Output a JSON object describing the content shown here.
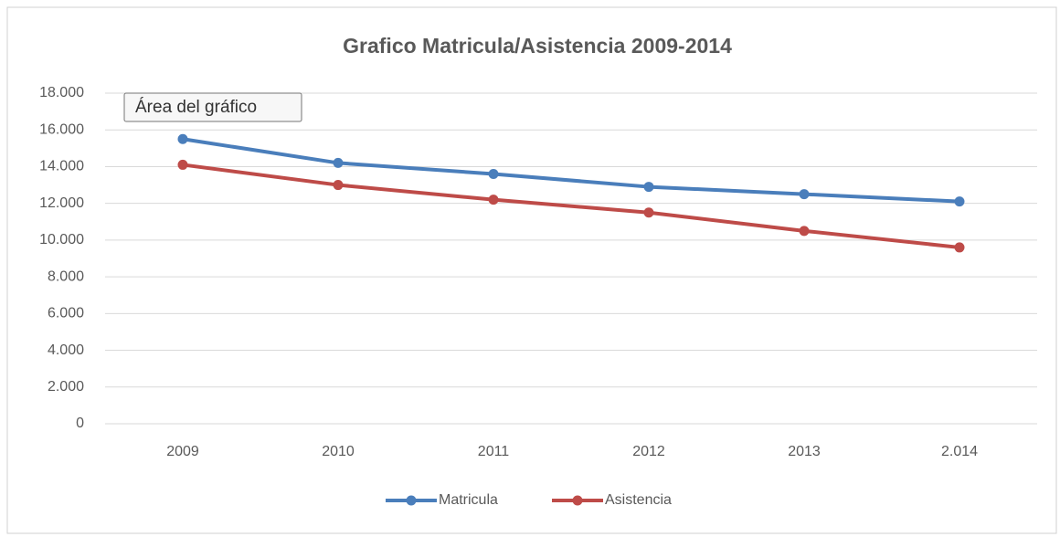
{
  "chart_data": {
    "type": "line",
    "title": "Grafico Matricula/Asistencia 2009-2014",
    "tooltip": "Área del gráfico",
    "categories": [
      "2009",
      "2010",
      "2011",
      "2012",
      "2013",
      "2.014"
    ],
    "series": [
      {
        "name": "Matricula",
        "color": "#4a7ebb",
        "values": [
          15500,
          14200,
          13600,
          12900,
          12500,
          12100
        ]
      },
      {
        "name": "Asistencia",
        "color": "#be4b48",
        "values": [
          14100,
          13000,
          12200,
          11500,
          10500,
          9600
        ]
      }
    ],
    "ylim": [
      0,
      18000
    ],
    "yticks": [
      0,
      {
        "value": 2000,
        "label": "2.000"
      },
      {
        "value": 4000,
        "label": "4.000"
      },
      {
        "value": 6000,
        "label": "6.000"
      },
      {
        "value": 8000,
        "label": "8.000"
      },
      {
        "value": 10000,
        "label": "10.000"
      },
      {
        "value": 12000,
        "label": "12.000"
      },
      {
        "value": 14000,
        "label": "14.000"
      },
      {
        "value": 16000,
        "label": "16.000"
      },
      {
        "value": 18000,
        "label": "18.000"
      }
    ],
    "grid": true,
    "legend": "bottom"
  }
}
